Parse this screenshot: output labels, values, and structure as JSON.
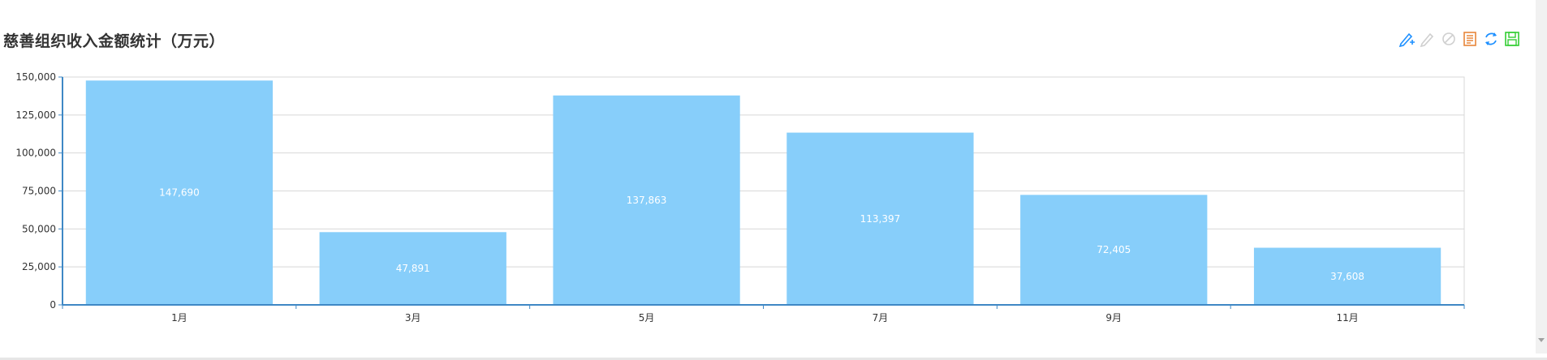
{
  "title": "慈善组织收入金额统计（万元）",
  "toolbox": {
    "icons": [
      "mark-pen-icon",
      "mark-undo-icon",
      "mark-clear-icon",
      "data-view-icon",
      "restore-icon",
      "save-image-icon"
    ]
  },
  "colors": {
    "bar": "#87cefa",
    "axis": "#3f88c5",
    "grid": "#d8d8d8",
    "label": "#ffffff",
    "text": "#333333"
  },
  "chart_data": {
    "type": "bar",
    "categories": [
      "1月",
      "3月",
      "5月",
      "7月",
      "9月",
      "11月"
    ],
    "values": [
      147690,
      47891,
      137863,
      113397,
      72405,
      37608
    ],
    "value_labels": [
      "147,690",
      "47,891",
      "137,863",
      "113,397",
      "72,405",
      "37,608"
    ],
    "yticks": [
      "0",
      "25,000",
      "50,000",
      "75,000",
      "100,000",
      "125,000",
      "150,000"
    ],
    "ylim": [
      0,
      150000
    ],
    "grid": true,
    "title": "慈善组织收入金额统计（万元）"
  }
}
